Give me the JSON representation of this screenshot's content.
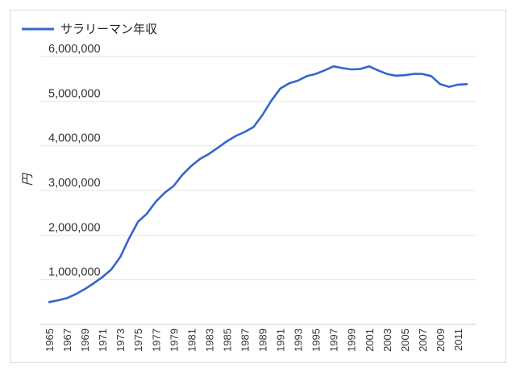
{
  "chart_data": {
    "type": "line",
    "ylabel": "円",
    "xlabel": "",
    "ylim": [
      0,
      6000000
    ],
    "grid": true,
    "legend_position": "top-left",
    "yticks": [
      "1,000,000",
      "2,000,000",
      "3,000,000",
      "4,000,000",
      "5,000,000",
      "6,000,000"
    ],
    "xticks": [
      "1965",
      "1967",
      "1969",
      "1971",
      "1973",
      "1975",
      "1977",
      "1979",
      "1981",
      "1983",
      "1985",
      "1987",
      "1989",
      "1991",
      "1993",
      "1995",
      "1997",
      "1999",
      "2001",
      "2003",
      "2005",
      "2007",
      "2009",
      "2011"
    ],
    "x": [
      1965,
      1966,
      1967,
      1968,
      1969,
      1970,
      1971,
      1972,
      1973,
      1974,
      1975,
      1976,
      1977,
      1978,
      1979,
      1980,
      1981,
      1982,
      1983,
      1984,
      1985,
      1986,
      1987,
      1988,
      1989,
      1990,
      1991,
      1992,
      1993,
      1994,
      1995,
      1996,
      1997,
      1998,
      1999,
      2000,
      2001,
      2002,
      2003,
      2004,
      2005,
      2006,
      2007,
      2008,
      2009,
      2010,
      2011,
      2012
    ],
    "series": [
      {
        "name": "サラリーマン年収",
        "color": "#3366cc",
        "values": [
          500000,
          540000,
          590000,
          680000,
          790000,
          920000,
          1060000,
          1230000,
          1510000,
          1930000,
          2300000,
          2480000,
          2750000,
          2950000,
          3100000,
          3350000,
          3550000,
          3710000,
          3820000,
          3960000,
          4100000,
          4220000,
          4310000,
          4420000,
          4690000,
          5010000,
          5280000,
          5400000,
          5460000,
          5560000,
          5610000,
          5690000,
          5780000,
          5740000,
          5710000,
          5720000,
          5780000,
          5690000,
          5610000,
          5570000,
          5580000,
          5610000,
          5610000,
          5560000,
          5380000,
          5320000,
          5370000,
          5380000
        ]
      }
    ]
  }
}
